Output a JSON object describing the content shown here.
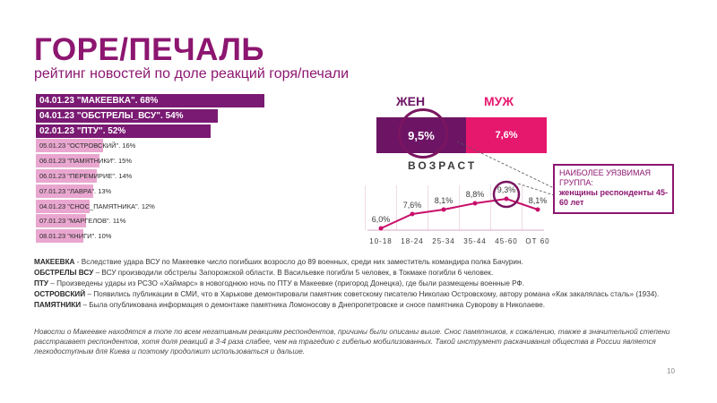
{
  "title": "ГОРЕ/ПЕЧАЛЬ",
  "subtitle": "рейтинг новостей по доле реакций горя/печали",
  "chart_data": [
    {
      "type": "bar",
      "orientation": "horizontal",
      "categories": [
        "04.01.23 \"МАКЕЕВКА\". 68%",
        "04.01.23 \"ОБСТРЕЛЫ_ВСУ\". 54%",
        "02.01.23 \"ПТУ\". 52%",
        "05.01.23 \"ОСТРОВСКИЙ\". 16%",
        "06.01.23 \"ПАМЯТНИКИ\". 15%",
        "06.01.23 \"ПЕРЕМИРИЕ\". 14%",
        "07.01.23 \"ЛАВРА\". 13%",
        "04.01.23 \"СНОС_ПАМЯТНИКА\". 12%",
        "07.01.23 \"МАРГЕЛОВ\". 11%",
        "08.01.23 \"КНИГИ\". 10%"
      ],
      "values": [
        68,
        54,
        52,
        16,
        15,
        14,
        13,
        12,
        11,
        10
      ],
      "colors": [
        "#7a1a73",
        "#7a1a73",
        "#7a1a73",
        "#e9a7d0",
        "#e9a7d0",
        "#e9a7d0",
        "#e9a7d0",
        "#e9a7d0",
        "#e9a7d0",
        "#e9a7d0"
      ]
    },
    {
      "type": "bar",
      "categories": [
        "ЖЕН",
        "МУЖ"
      ],
      "values": [
        9.5,
        7.6
      ],
      "labels": [
        "9,5%",
        "7,6%"
      ],
      "colors": [
        "#6d1465",
        "#e6186e"
      ]
    },
    {
      "type": "line",
      "xlabel": "ВОЗРАСТ",
      "categories": [
        "10-18",
        "18-24",
        "25-34",
        "35-44",
        "45-60",
        "ОТ 60"
      ],
      "values": [
        6.0,
        7.6,
        8.1,
        8.8,
        9.3,
        8.1
      ],
      "labels": [
        "6,0%",
        "7,6%",
        "8,1%",
        "8,8%",
        "9,3%",
        "8,1%"
      ],
      "ylim": [
        0,
        10
      ],
      "color": "#c8106b"
    }
  ],
  "callout": {
    "line1": "НАИБОЛЕЕ УЯЗВИМАЯ ГРУППА:",
    "line2": "женщины респонденты 45-60 лет"
  },
  "notes": [
    {
      "term": "МАКЕЕВКА",
      "text": " - Вследствие удара ВСУ по Макеевке число погибших возросло до 89 военных, среди них заместитель командира полка Бачурин."
    },
    {
      "term": "ОБСТРЕЛЫ ВСУ",
      "text": " – ВСУ производили обстрелы Запорожской области. В Васильевке погибли 5 человек, в Токмаке погибли 6 человек."
    },
    {
      "term": "ПТУ",
      "text": " – Произведены удары из РСЗО «Хаймарс» в новогоднюю ночь по ПТУ в Макеевке (пригород Донецка), где были размещены военные РФ."
    },
    {
      "term": "ОСТРОВСКИЙ",
      "text": " – Появились публикации в СМИ, что в Харькове демонтировали памятник советскому писателю Николаю Островскому, автору романа «Как закалялась сталь» (1934)."
    },
    {
      "term": "ПАМЯТНИКИ",
      "text": " – Была опубликована информация о демонтаже памятника Ломоносову в Днепропетровске и сносе памятника Суворову в Николаеве."
    }
  ],
  "summary": "Новости о Макеевке находятся в топе по всем негативным реакциям респондентов, причины были описаны выше. Снос памятников, к сожалению, также в значительной степени расстраивает респондентов, хотя доля реакций в 3-4 раза слабее, чем на трагедию с гибелью мобилизованных. Такой инструмент раскачивания общества в России является легкодоступным для Киева и поэтому продолжит использоваться и дальше.",
  "page_number": "10"
}
